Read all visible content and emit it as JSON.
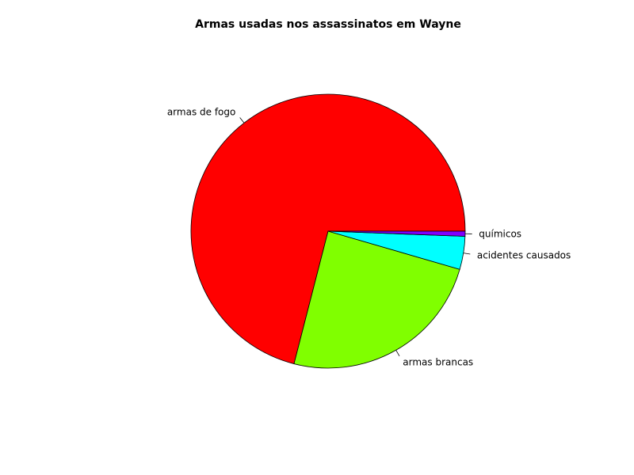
{
  "chart_data": {
    "type": "pie",
    "title": "Armas usadas nos assassinatos em Wayne",
    "categories": [
      "armas de fogo",
      "armas brancas",
      "acidentes causados",
      "químicos"
    ],
    "values": [
      71,
      24.5,
      3.9,
      0.6
    ],
    "colors": [
      "#ff0000",
      "#80ff00",
      "#00ffff",
      "#8000ff"
    ],
    "start_angle_deg": 0,
    "direction": "counterclockwise",
    "legend": "none"
  }
}
